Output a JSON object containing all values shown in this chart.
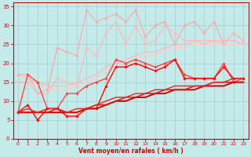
{
  "xlabel": "Vent moyen/en rafales ( km/h )",
  "xlim": [
    -0.5,
    23.5
  ],
  "ylim": [
    0,
    36
  ],
  "xticks": [
    0,
    1,
    2,
    3,
    4,
    5,
    6,
    7,
    8,
    9,
    10,
    11,
    12,
    13,
    14,
    15,
    16,
    17,
    18,
    19,
    20,
    21,
    22,
    23
  ],
  "yticks": [
    0,
    5,
    10,
    15,
    20,
    25,
    30,
    35
  ],
  "background_color": "#c5eaea",
  "grid_color": "#9fcece",
  "series": [
    {
      "x": [
        0,
        1,
        2,
        3,
        4,
        5,
        6,
        7,
        8,
        9,
        10,
        11,
        12,
        13,
        14,
        15,
        16,
        17,
        18,
        19,
        20,
        21,
        22,
        23
      ],
      "y": [
        17,
        16,
        15,
        14,
        14,
        14,
        15,
        16,
        17,
        19,
        20,
        21,
        22,
        23,
        23,
        24,
        25,
        25,
        26,
        26,
        26,
        26,
        26,
        25
      ],
      "color": "#ffbbbb",
      "lw": 1.0,
      "marker": null,
      "ms": 0,
      "zorder": 2
    },
    {
      "x": [
        0,
        1,
        2,
        3,
        4,
        5,
        6,
        7,
        8,
        9,
        10,
        11,
        12,
        13,
        14,
        15,
        16,
        17,
        18,
        19,
        20,
        21,
        22,
        23
      ],
      "y": [
        17,
        16,
        14,
        14,
        13,
        13,
        14,
        15,
        16,
        18,
        19,
        20,
        21,
        22,
        22,
        23,
        24,
        24,
        25,
        25,
        25,
        25,
        25,
        25
      ],
      "color": "#ffcccc",
      "lw": 1.0,
      "marker": null,
      "ms": 0,
      "zorder": 2
    },
    {
      "x": [
        0,
        1,
        2,
        3,
        4,
        5,
        6,
        7,
        8,
        9,
        10,
        11,
        12,
        13,
        14,
        15,
        16,
        17,
        18,
        19,
        20,
        21,
        22,
        23
      ],
      "y": [
        17,
        17,
        12,
        13,
        24,
        23,
        22,
        34,
        31,
        32,
        33,
        31,
        34,
        27,
        30,
        31,
        25,
        30,
        31,
        28,
        31,
        25,
        28,
        26
      ],
      "color": "#ffaaaa",
      "lw": 0.9,
      "marker": "D",
      "ms": 1.8,
      "zorder": 3
    },
    {
      "x": [
        0,
        1,
        2,
        3,
        4,
        5,
        6,
        7,
        8,
        9,
        10,
        11,
        12,
        13,
        14,
        15,
        16,
        17,
        18,
        19,
        20,
        21,
        22,
        23
      ],
      "y": [
        15,
        15,
        12,
        12,
        16,
        15,
        14,
        24,
        22,
        28,
        31,
        25,
        30,
        25,
        26,
        30,
        28,
        26,
        26,
        25,
        26,
        25,
        28,
        26
      ],
      "color": "#ffbbbb",
      "lw": 0.9,
      "marker": "D",
      "ms": 1.8,
      "zorder": 3
    },
    {
      "x": [
        0,
        1,
        2,
        3,
        4,
        5,
        6,
        7,
        8,
        9,
        10,
        11,
        12,
        13,
        14,
        15,
        16,
        17,
        18,
        19,
        20,
        21,
        22,
        23
      ],
      "y": [
        7,
        7,
        7,
        7,
        7,
        7,
        7,
        8,
        8,
        9,
        10,
        10,
        11,
        11,
        12,
        12,
        13,
        13,
        13,
        14,
        14,
        14,
        15,
        15
      ],
      "color": "#cc0000",
      "lw": 1.4,
      "marker": null,
      "ms": 0,
      "zorder": 6
    },
    {
      "x": [
        0,
        1,
        2,
        3,
        4,
        5,
        6,
        7,
        8,
        9,
        10,
        11,
        12,
        13,
        14,
        15,
        16,
        17,
        18,
        19,
        20,
        21,
        22,
        23
      ],
      "y": [
        7,
        7,
        7,
        7,
        8,
        7,
        7,
        8,
        9,
        9,
        10,
        11,
        11,
        12,
        12,
        13,
        13,
        13,
        14,
        14,
        15,
        15,
        15,
        15
      ],
      "color": "#dd1111",
      "lw": 1.1,
      "marker": null,
      "ms": 0,
      "zorder": 6
    },
    {
      "x": [
        0,
        1,
        2,
        3,
        4,
        5,
        6,
        7,
        8,
        9,
        10,
        11,
        12,
        13,
        14,
        15,
        16,
        17,
        18,
        19,
        20,
        21,
        22,
        23
      ],
      "y": [
        7,
        8,
        7,
        8,
        8,
        7,
        8,
        8,
        9,
        10,
        11,
        11,
        12,
        12,
        13,
        13,
        14,
        14,
        14,
        14,
        15,
        15,
        16,
        16
      ],
      "color": "#ee2222",
      "lw": 1.0,
      "marker": null,
      "ms": 0,
      "zorder": 6
    },
    {
      "x": [
        0,
        1,
        2,
        3,
        4,
        5,
        6,
        7,
        8,
        9,
        10,
        11,
        12,
        13,
        14,
        15,
        16,
        17,
        18,
        19,
        20,
        21,
        22,
        23
      ],
      "y": [
        7,
        17,
        15,
        8,
        8,
        12,
        12,
        14,
        15,
        16,
        21,
        20,
        21,
        20,
        19,
        20,
        21,
        17,
        16,
        16,
        16,
        20,
        15,
        16
      ],
      "color": "#ff4444",
      "lw": 1.0,
      "marker": "D",
      "ms": 1.8,
      "zorder": 5
    },
    {
      "x": [
        0,
        1,
        2,
        3,
        4,
        5,
        6,
        7,
        8,
        9,
        10,
        11,
        12,
        13,
        14,
        15,
        16,
        17,
        18,
        19,
        20,
        21,
        22,
        23
      ],
      "y": [
        7,
        9,
        5,
        8,
        8,
        6,
        6,
        8,
        8,
        14,
        19,
        19,
        20,
        19,
        18,
        19,
        21,
        16,
        16,
        16,
        16,
        19,
        16,
        16
      ],
      "color": "#ff0000",
      "lw": 1.0,
      "marker": "D",
      "ms": 1.8,
      "zorder": 5
    }
  ]
}
